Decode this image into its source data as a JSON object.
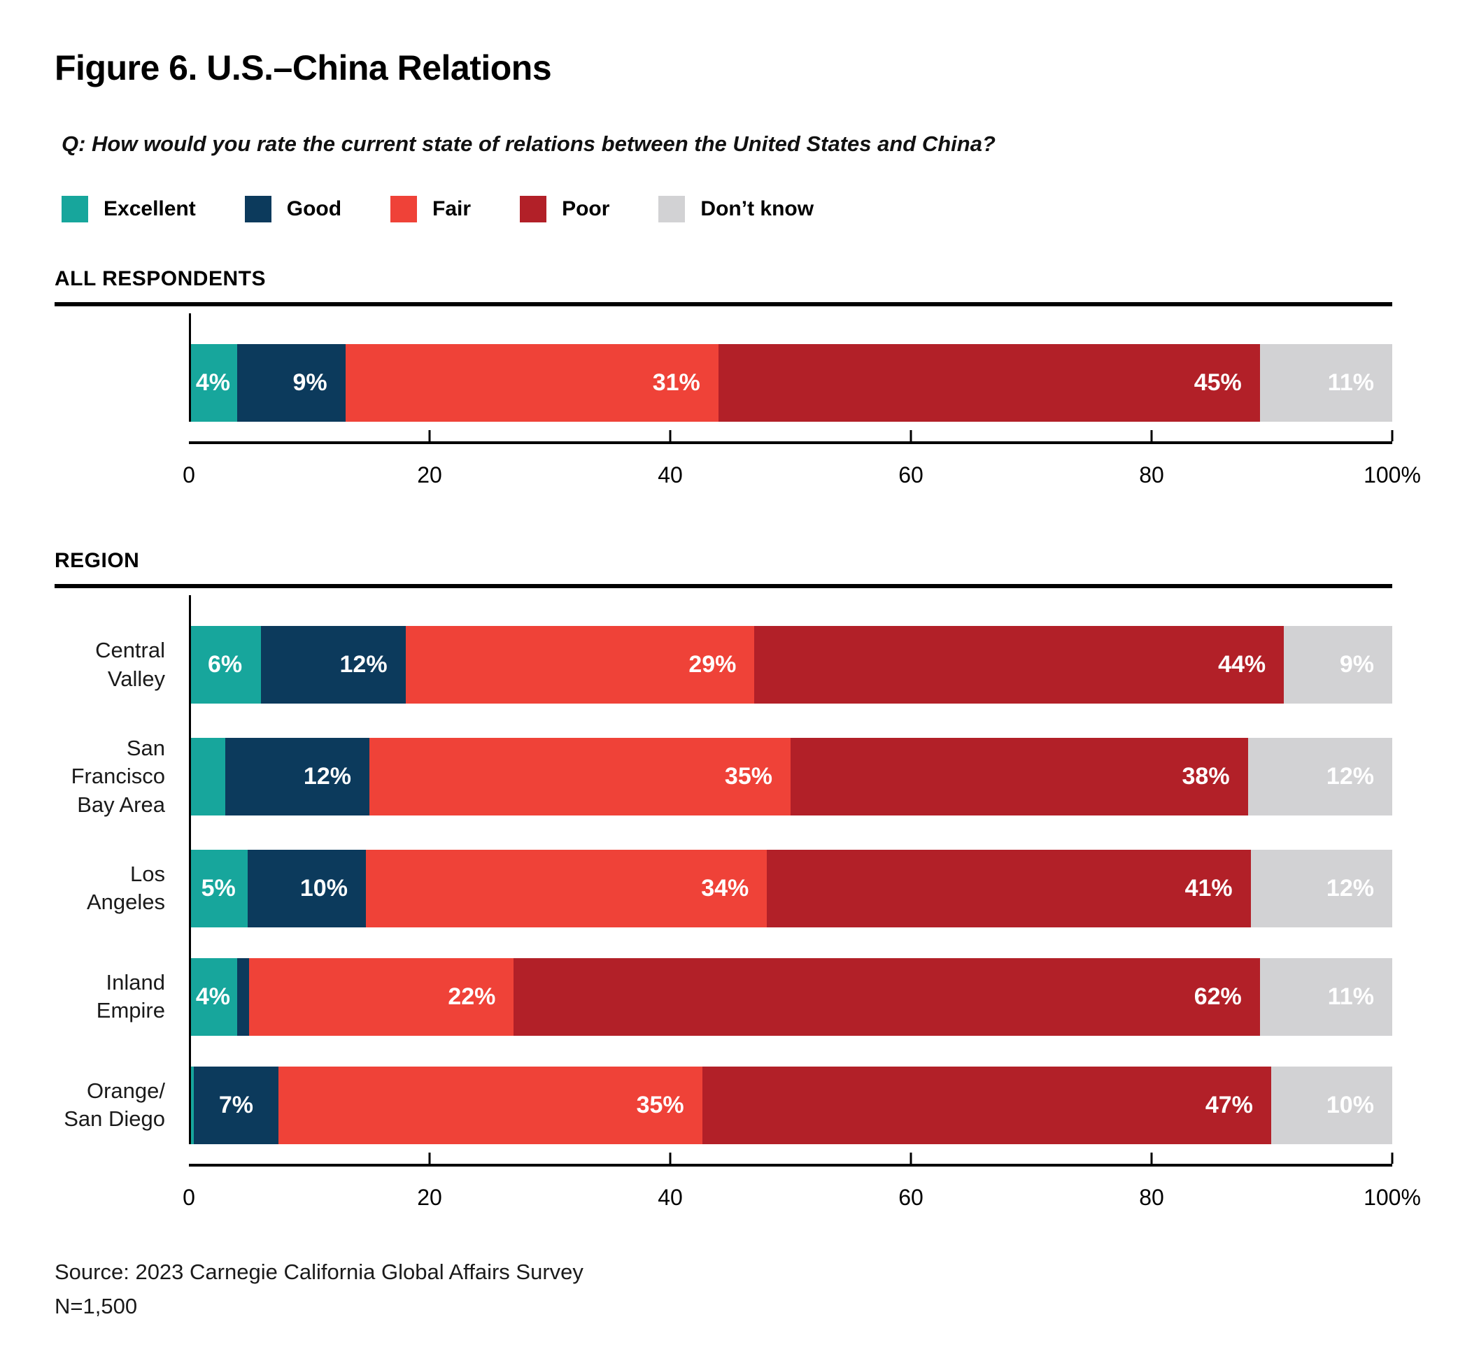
{
  "figure": {
    "title": "Figure 6. U.S.–China Relations",
    "question": "Q: How would you rate the current state of relations between the United States and China?",
    "source_line1": "Source: 2023 Carnegie California Global Affairs Survey",
    "source_line2": "N=1,500"
  },
  "series_colors": {
    "excellent": "#17A69C",
    "good": "#0C3A5C",
    "fair": "#EF4238",
    "poor": "#B22028",
    "dont_know": "#D2D2D4"
  },
  "legend": [
    {
      "id": "excellent",
      "label": "Excellent"
    },
    {
      "id": "good",
      "label": "Good"
    },
    {
      "id": "fair",
      "label": "Fair"
    },
    {
      "id": "poor",
      "label": "Poor"
    },
    {
      "id": "dont_know",
      "label": "Don’t know"
    }
  ],
  "chart_data": {
    "type": "bar",
    "orientation": "horizontal",
    "stacked": true,
    "title": "Figure 6. U.S.–China Relations",
    "xlabel": "",
    "ylabel": "",
    "xlim": [
      0,
      100
    ],
    "grid": false,
    "legend_position": "top",
    "series_names": [
      "Excellent",
      "Good",
      "Fair",
      "Poor",
      "Don’t know"
    ],
    "axis": {
      "ticks": [
        {
          "value": 0,
          "label": "0"
        },
        {
          "value": 20,
          "label": "20"
        },
        {
          "value": 40,
          "label": "40"
        },
        {
          "value": 60,
          "label": "60"
        },
        {
          "value": 80,
          "label": "80"
        },
        {
          "value": 100,
          "label": "100%"
        }
      ]
    },
    "sections": [
      {
        "heading": "ALL RESPONDENTS",
        "rows": [
          {
            "label": "",
            "segments": [
              {
                "series": "excellent",
                "value": 4,
                "label": "4%"
              },
              {
                "series": "good",
                "value": 9,
                "label": "9%"
              },
              {
                "series": "fair",
                "value": 31,
                "label": "31%"
              },
              {
                "series": "poor",
                "value": 45,
                "label": "45%"
              },
              {
                "series": "dont_know",
                "value": 11,
                "label": "11%"
              }
            ]
          }
        ]
      },
      {
        "heading": "REGION",
        "rows": [
          {
            "label": "Central Valley",
            "segments": [
              {
                "series": "excellent",
                "value": 6,
                "label": "6%"
              },
              {
                "series": "good",
                "value": 12,
                "label": "12%"
              },
              {
                "series": "fair",
                "value": 29,
                "label": "29%"
              },
              {
                "series": "poor",
                "value": 44,
                "label": "44%"
              },
              {
                "series": "dont_know",
                "value": 9,
                "label": "9%"
              }
            ]
          },
          {
            "label": "San Francisco\nBay Area",
            "segments": [
              {
                "series": "excellent",
                "value": 3,
                "label": ""
              },
              {
                "series": "good",
                "value": 12,
                "label": "12%"
              },
              {
                "series": "fair",
                "value": 35,
                "label": "35%"
              },
              {
                "series": "poor",
                "value": 38,
                "label": "38%"
              },
              {
                "series": "dont_know",
                "value": 12,
                "label": "12%"
              }
            ]
          },
          {
            "label": "Los Angeles",
            "segments": [
              {
                "series": "excellent",
                "value": 5,
                "label": "5%"
              },
              {
                "series": "good",
                "value": 10,
                "label": "10%"
              },
              {
                "series": "fair",
                "value": 34,
                "label": "34%"
              },
              {
                "series": "poor",
                "value": 41,
                "label": "41%"
              },
              {
                "series": "dont_know",
                "value": 12,
                "label": "12%"
              }
            ]
          },
          {
            "label": "Inland Empire",
            "segments": [
              {
                "series": "excellent",
                "value": 4,
                "label": "4%"
              },
              {
                "series": "good",
                "value": 1,
                "label": ""
              },
              {
                "series": "fair",
                "value": 22,
                "label": "22%"
              },
              {
                "series": "poor",
                "value": 62,
                "label": "62%"
              },
              {
                "series": "dont_know",
                "value": 11,
                "label": "11%"
              }
            ]
          },
          {
            "label": "Orange/\nSan Diego",
            "segments": [
              {
                "series": "excellent",
                "value": 0.4,
                "label": ""
              },
              {
                "series": "good",
                "value": 7,
                "label": "7%"
              },
              {
                "series": "fair",
                "value": 35,
                "label": "35%"
              },
              {
                "series": "poor",
                "value": 47,
                "label": "47%"
              },
              {
                "series": "dont_know",
                "value": 10,
                "label": "10%"
              }
            ]
          }
        ]
      }
    ]
  }
}
